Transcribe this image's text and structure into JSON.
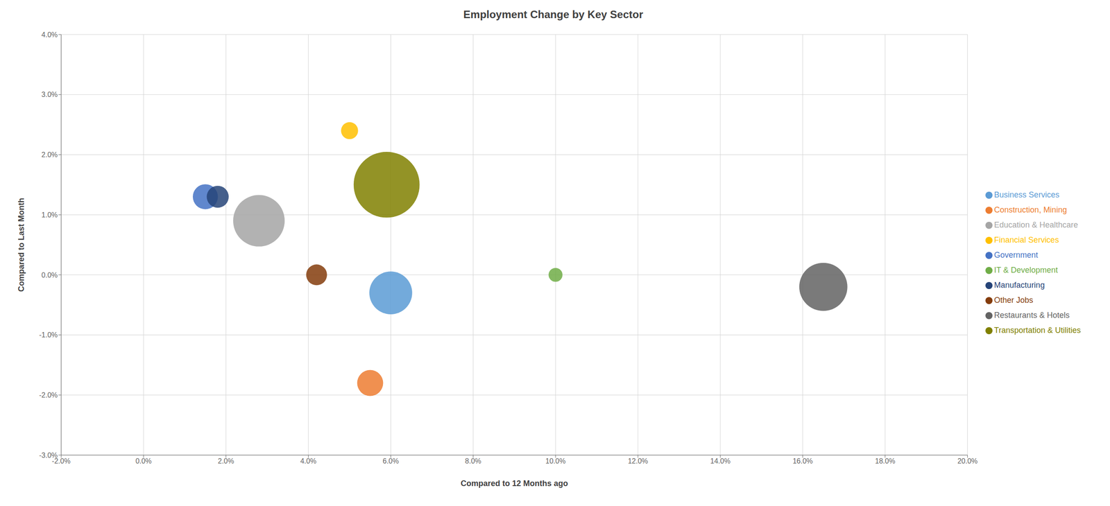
{
  "chart_data": {
    "type": "scatter",
    "title": "Employment Change by Key Sector",
    "xlabel": "Compared to 12 Months ago",
    "ylabel": "Compared to Last Month",
    "xlim": [
      -0.02,
      0.2
    ],
    "ylim": [
      -0.03,
      0.04
    ],
    "xticks": [
      {
        "value": -0.02,
        "label": "-2.0%"
      },
      {
        "value": 0.0,
        "label": "0.0%"
      },
      {
        "value": 0.02,
        "label": "2.0%"
      },
      {
        "value": 0.04,
        "label": "4.0%"
      },
      {
        "value": 0.06,
        "label": "6.0%"
      },
      {
        "value": 0.08,
        "label": "8.0%"
      },
      {
        "value": 0.1,
        "label": "10.0%"
      },
      {
        "value": 0.12,
        "label": "12.0%"
      },
      {
        "value": 0.14,
        "label": "14.0%"
      },
      {
        "value": 0.16,
        "label": "16.0%"
      },
      {
        "value": 0.18,
        "label": "18.0%"
      },
      {
        "value": 0.2,
        "label": "20.0%"
      }
    ],
    "yticks": [
      {
        "value": -0.03,
        "label": "-3.0%"
      },
      {
        "value": -0.02,
        "label": "-2.0%"
      },
      {
        "value": -0.01,
        "label": "-1.0%"
      },
      {
        "value": 0.0,
        "label": "0.0%"
      },
      {
        "value": 0.01,
        "label": "1.0%"
      },
      {
        "value": 0.02,
        "label": "2.0%"
      },
      {
        "value": 0.03,
        "label": "3.0%"
      },
      {
        "value": 0.04,
        "label": "4.0%"
      }
    ],
    "grid": true,
    "legend": "right",
    "series": [
      {
        "name": "Business Services",
        "color": "#5b9bd5",
        "x": [
          0.06
        ],
        "y": [
          -0.003
        ],
        "size": [
          3800
        ]
      },
      {
        "name": "Construction, Mining",
        "color": "#ed7d31",
        "x": [
          0.055
        ],
        "y": [
          -0.018
        ],
        "size": [
          1400
        ]
      },
      {
        "name": "Education & Healthcare",
        "color": "#a5a5a5",
        "x": [
          0.028
        ],
        "y": [
          0.009
        ],
        "size": [
          5500
        ]
      },
      {
        "name": "Financial Services",
        "color": "#ffc000",
        "x": [
          0.05
        ],
        "y": [
          0.024
        ],
        "size": [
          600
        ]
      },
      {
        "name": "Government",
        "color": "#4472c4",
        "x": [
          0.015
        ],
        "y": [
          0.013
        ],
        "size": [
          1300
        ]
      },
      {
        "name": "IT & Development",
        "color": "#70ad47",
        "x": [
          0.1
        ],
        "y": [
          0.0
        ],
        "size": [
          400
        ]
      },
      {
        "name": "Manufacturing",
        "color": "#264478",
        "x": [
          0.018
        ],
        "y": [
          0.013
        ],
        "size": [
          1000
        ]
      },
      {
        "name": "Other Jobs",
        "color": "#843c0c",
        "x": [
          0.042
        ],
        "y": [
          0.0
        ],
        "size": [
          900
        ]
      },
      {
        "name": "Restaurants & Hotels",
        "color": "#636363",
        "x": [
          0.165
        ],
        "y": [
          -0.002
        ],
        "size": [
          4800
        ]
      },
      {
        "name": "Transportation & Utilities",
        "color": "#808000",
        "x": [
          0.059
        ],
        "y": [
          0.015
        ],
        "size": [
          9000
        ]
      }
    ]
  }
}
